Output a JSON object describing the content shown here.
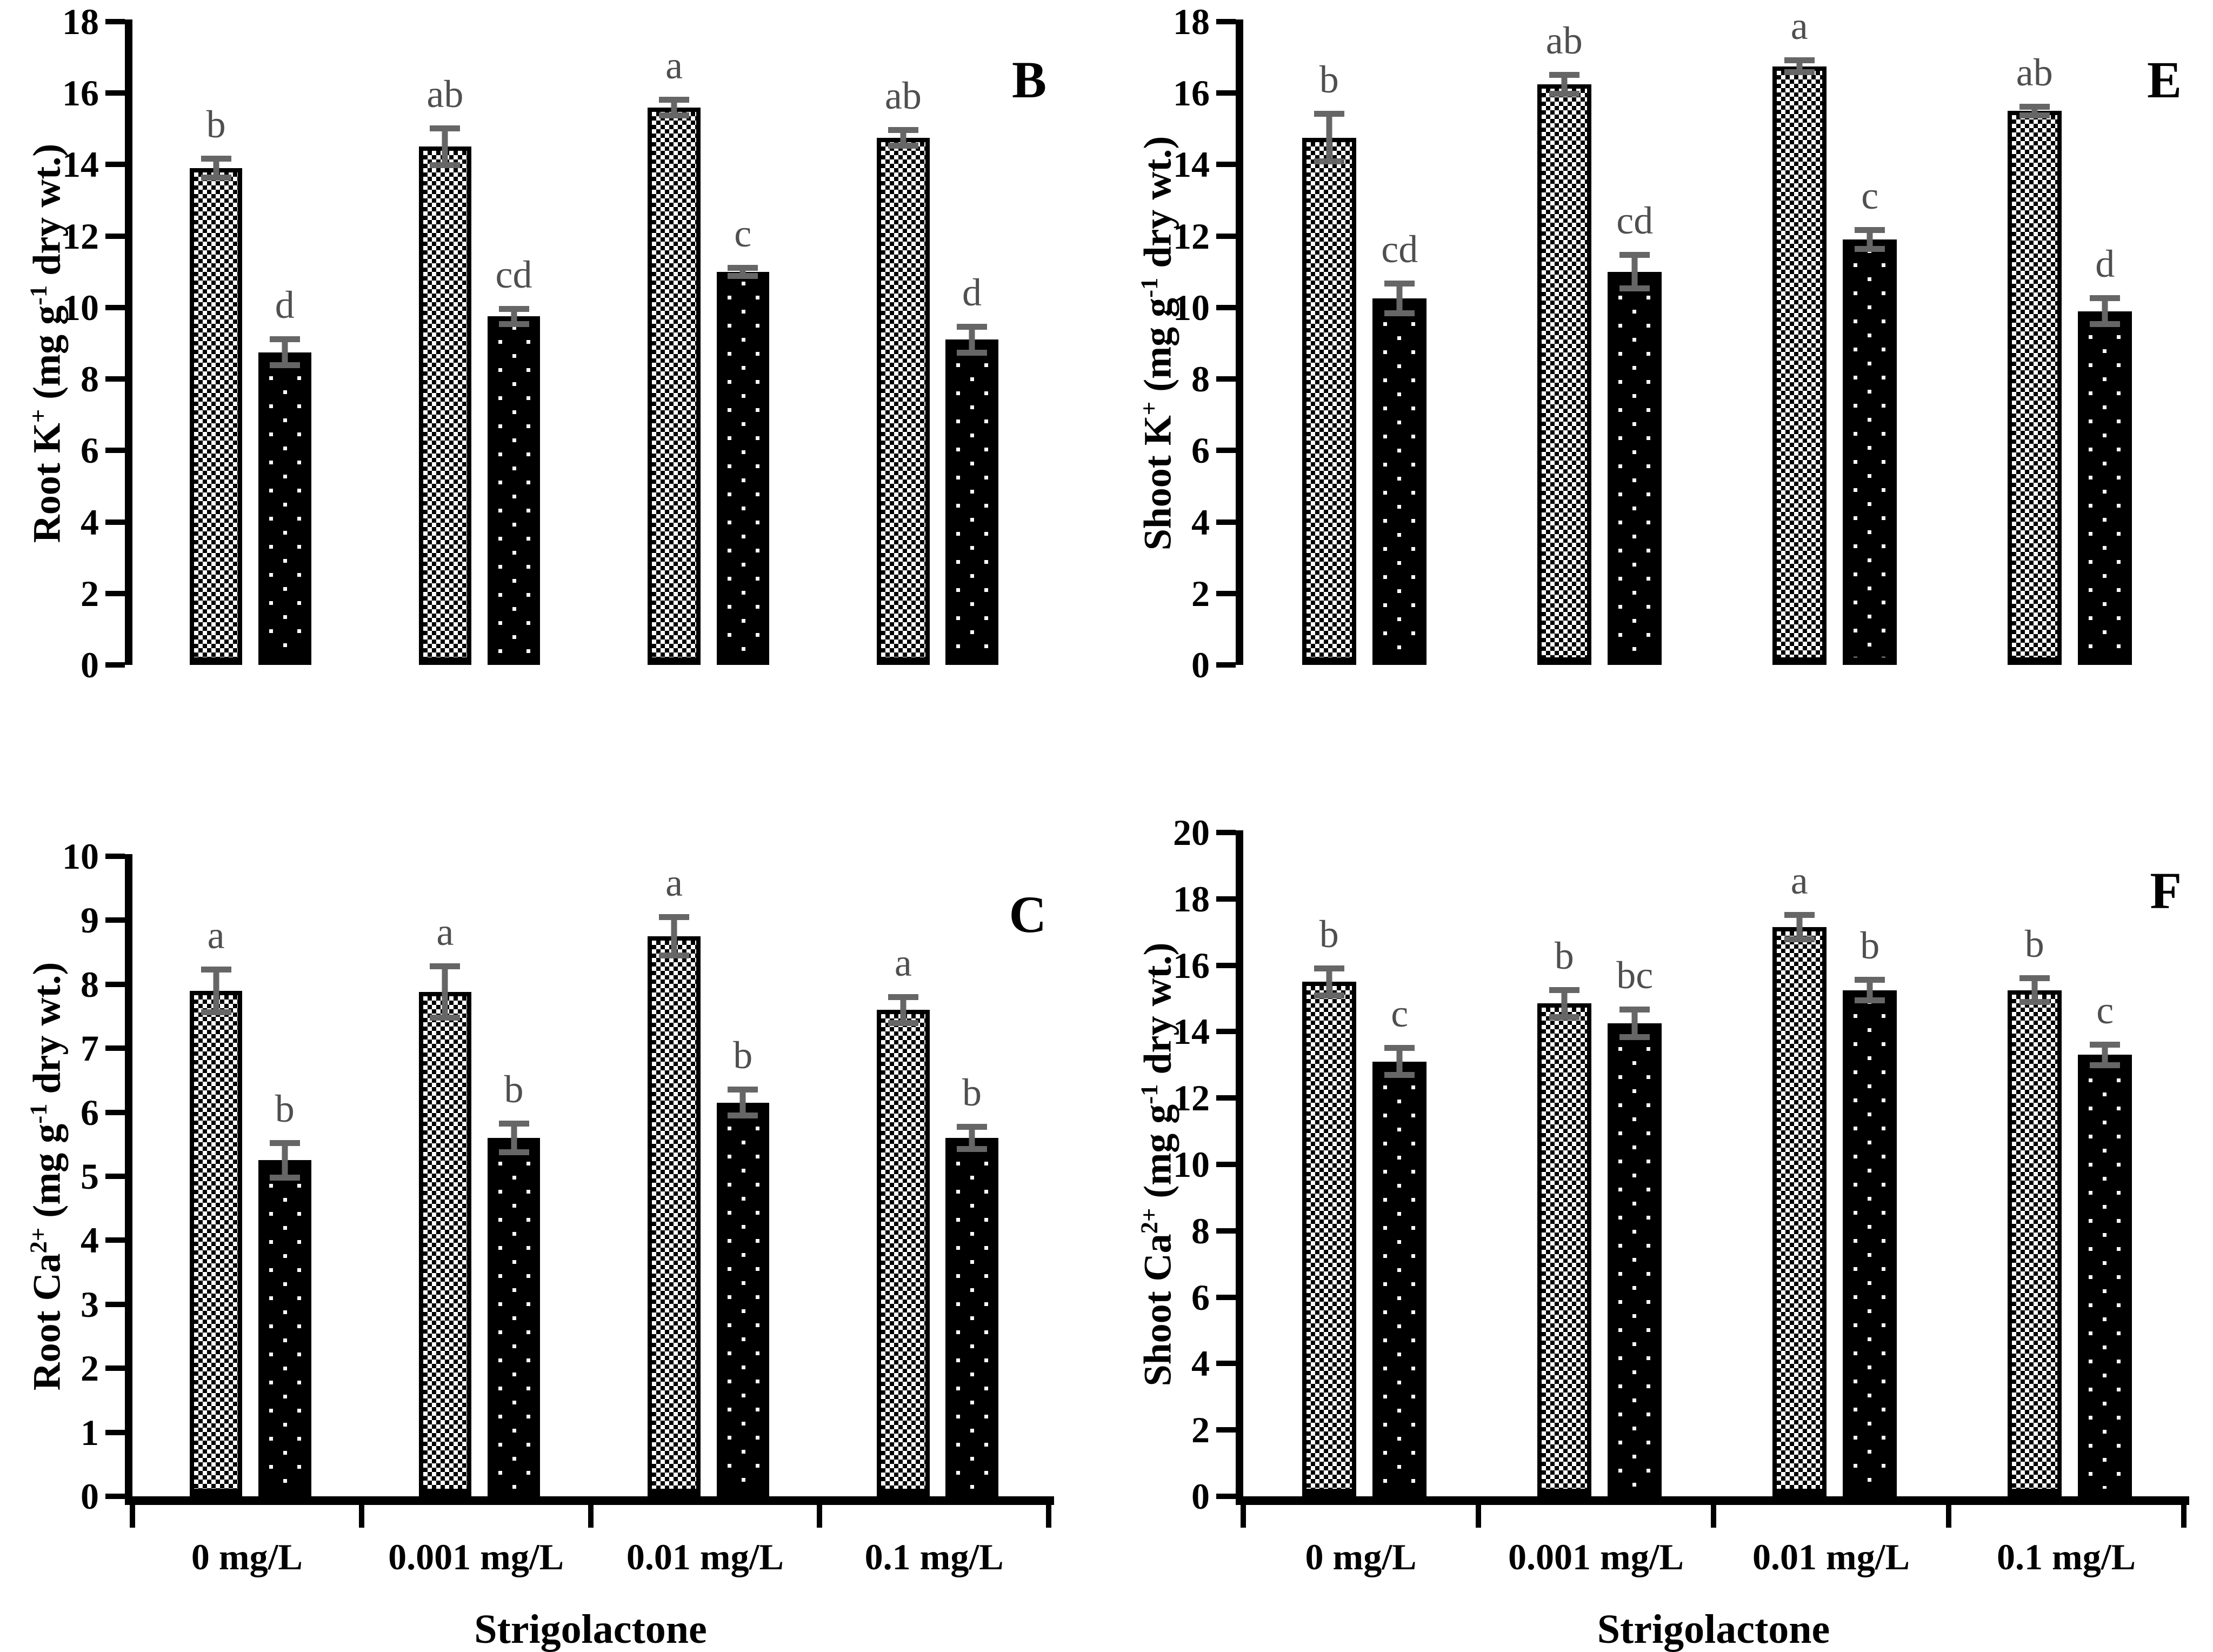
{
  "figure": {
    "categories": [
      "0 mg/L",
      "0.001 mg/L",
      "0.01 mg/L",
      "0.1 mg/L"
    ],
    "x_axis_title": "Strigolactone",
    "error_bar_color": "#666666",
    "letter_color": "#4f4f4f",
    "bar_outline_color": "#000000",
    "series_patterns": [
      "checkerboard",
      "dotted"
    ]
  },
  "chart_data": [
    {
      "type": "bar",
      "panel_label": "B",
      "ylabel_parts": [
        {
          "t": "Root K"
        },
        {
          "s": "+"
        },
        {
          "t": " (mg g"
        },
        {
          "s": "-1"
        },
        {
          "t": " dry wt.)"
        }
      ],
      "ylim": [
        0,
        18
      ],
      "ystep": 2,
      "show_xaxis": false,
      "categories": [
        "0 mg/L",
        "0.001 mg/L",
        "0.01 mg/L",
        "0.1 mg/L"
      ],
      "series": [
        {
          "name": "checkerboard",
          "values": [
            13.9,
            14.5,
            15.6,
            14.75
          ],
          "errors": [
            0.35,
            0.6,
            0.3,
            0.3
          ],
          "letters": [
            "b",
            "ab",
            "a",
            "ab"
          ]
        },
        {
          "name": "dotted",
          "values": [
            8.75,
            9.75,
            11.0,
            9.1
          ],
          "errors": [
            0.45,
            0.3,
            0.2,
            0.45
          ],
          "letters": [
            "d",
            "cd",
            "c",
            "d"
          ]
        }
      ]
    },
    {
      "type": "bar",
      "panel_label": "E",
      "ylabel_parts": [
        {
          "t": "Shoot K"
        },
        {
          "s": "+"
        },
        {
          "t": " (mg g"
        },
        {
          "s": "-1"
        },
        {
          "t": " dry wt.)"
        }
      ],
      "ylim": [
        0,
        18
      ],
      "ystep": 2,
      "show_xaxis": false,
      "categories": [
        "0 mg/L",
        "0.001 mg/L",
        "0.01 mg/L",
        "0.1 mg/L"
      ],
      "series": [
        {
          "name": "checkerboard",
          "values": [
            14.75,
            16.25,
            16.75,
            15.5
          ],
          "errors": [
            0.75,
            0.35,
            0.25,
            0.2
          ],
          "letters": [
            "b",
            "ab",
            "a",
            "ab"
          ]
        },
        {
          "name": "dotted",
          "values": [
            10.25,
            11.0,
            11.9,
            9.9
          ],
          "errors": [
            0.5,
            0.55,
            0.35,
            0.45
          ],
          "letters": [
            "cd",
            "cd",
            "c",
            "d"
          ]
        }
      ]
    },
    {
      "type": "bar",
      "panel_label": "C",
      "ylabel_parts": [
        {
          "t": "Root Ca"
        },
        {
          "s": "2+"
        },
        {
          "t": " (mg g"
        },
        {
          "s": "-1"
        },
        {
          "t": " dry wt.)"
        }
      ],
      "ylim": [
        0,
        10
      ],
      "ystep": 1,
      "show_xaxis": true,
      "categories": [
        "0 mg/L",
        "0.001 mg/L",
        "0.01 mg/L",
        "0.1 mg/L"
      ],
      "series": [
        {
          "name": "checkerboard",
          "values": [
            7.9,
            7.88,
            8.75,
            7.6
          ],
          "errors": [
            0.38,
            0.45,
            0.35,
            0.25
          ],
          "letters": [
            "a",
            "a",
            "a",
            "a"
          ]
        },
        {
          "name": "dotted",
          "values": [
            5.25,
            5.6,
            6.15,
            5.6
          ],
          "errors": [
            0.32,
            0.27,
            0.25,
            0.22
          ],
          "letters": [
            "b",
            "b",
            "b",
            "b"
          ]
        }
      ]
    },
    {
      "type": "bar",
      "panel_label": "F",
      "ylabel_parts": [
        {
          "t": "Shoot Ca"
        },
        {
          "s": "2+"
        },
        {
          "t": " (mg g"
        },
        {
          "s": "-1"
        },
        {
          "t": " dry wt.)"
        }
      ],
      "ylim": [
        0,
        20
      ],
      "ystep": 2,
      "show_xaxis": true,
      "categories": [
        "0 mg/L",
        "0.001 mg/L",
        "0.01 mg/L",
        "0.1 mg/L"
      ],
      "series": [
        {
          "name": "checkerboard",
          "values": [
            15.5,
            14.85,
            17.15,
            15.25
          ],
          "errors": [
            0.5,
            0.5,
            0.45,
            0.45
          ],
          "letters": [
            "b",
            "b",
            "a",
            "b"
          ]
        },
        {
          "name": "dotted",
          "values": [
            13.1,
            14.25,
            15.25,
            13.3
          ],
          "errors": [
            0.5,
            0.5,
            0.4,
            0.4
          ],
          "letters": [
            "c",
            "bc",
            "b",
            "c"
          ]
        }
      ]
    }
  ]
}
